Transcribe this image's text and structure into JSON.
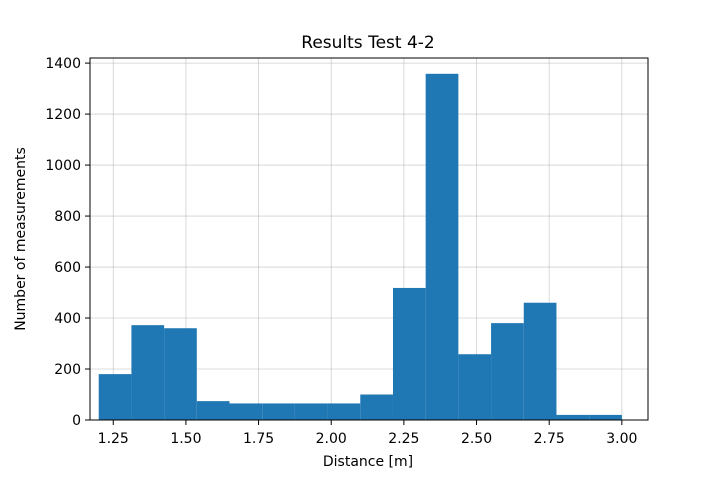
{
  "chart_data": {
    "type": "bar",
    "title": "Results Test 4-2",
    "xlabel": "Distance [m]",
    "ylabel": "Number of measurements",
    "xlim": [
      1.17,
      3.09
    ],
    "ylim": [
      0,
      1420
    ],
    "grid": true,
    "bar_color": "#1f77b4",
    "xticks": [
      1.25,
      1.5,
      1.75,
      2.0,
      2.25,
      2.5,
      2.75,
      3.0
    ],
    "xtick_labels": [
      "1.25",
      "1.50",
      "1.75",
      "2.00",
      "2.25",
      "2.50",
      "2.75",
      "3.00"
    ],
    "yticks": [
      0,
      200,
      400,
      600,
      800,
      1000,
      1200,
      1400
    ],
    "ytick_labels": [
      "0",
      "200",
      "400",
      "600",
      "800",
      "1000",
      "1200",
      "1400"
    ],
    "bins": [
      {
        "start": 1.2,
        "end": 1.3125,
        "count": 180
      },
      {
        "start": 1.3125,
        "end": 1.425,
        "count": 372
      },
      {
        "start": 1.425,
        "end": 1.5375,
        "count": 360
      },
      {
        "start": 1.5375,
        "end": 1.65,
        "count": 74
      },
      {
        "start": 1.65,
        "end": 1.7625,
        "count": 65
      },
      {
        "start": 1.7625,
        "end": 1.875,
        "count": 65
      },
      {
        "start": 1.875,
        "end": 1.9875,
        "count": 65
      },
      {
        "start": 1.9875,
        "end": 2.1,
        "count": 65
      },
      {
        "start": 2.1,
        "end": 2.2125,
        "count": 100
      },
      {
        "start": 2.2125,
        "end": 2.325,
        "count": 518
      },
      {
        "start": 2.325,
        "end": 2.4375,
        "count": 1358
      },
      {
        "start": 2.4375,
        "end": 2.55,
        "count": 258
      },
      {
        "start": 2.55,
        "end": 2.6625,
        "count": 380
      },
      {
        "start": 2.6625,
        "end": 2.775,
        "count": 460
      },
      {
        "start": 2.775,
        "end": 2.8875,
        "count": 20
      },
      {
        "start": 2.8875,
        "end": 3.0,
        "count": 20
      }
    ]
  }
}
